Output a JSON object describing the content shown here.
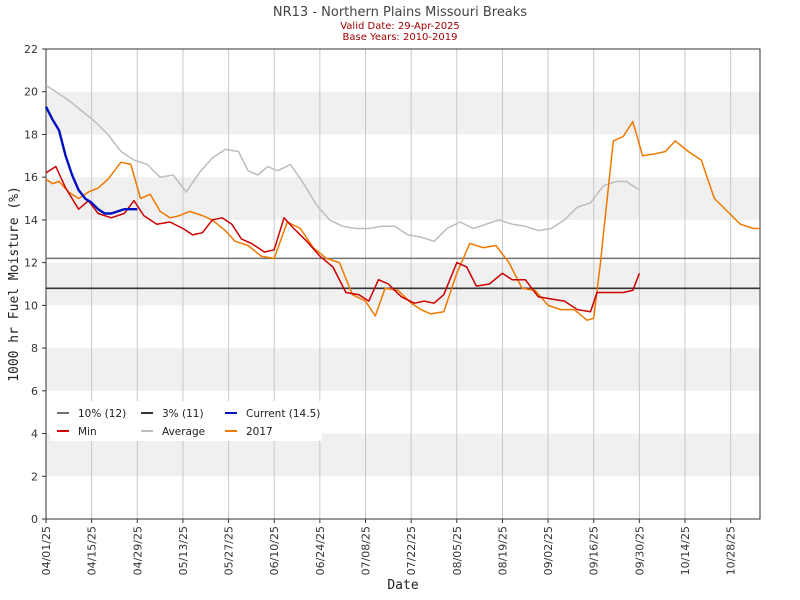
{
  "chart_data": {
    "type": "line",
    "title": "NR13 - Northern Plains Missouri Breaks",
    "subtitle_lines": [
      "Valid Date: 29-Apr-2025",
      "Base Years: 2010-2019"
    ],
    "xlabel": "Date",
    "ylabel": "1000 hr Fuel Moisture (%)",
    "ylim": [
      0,
      22
    ],
    "yticks": [
      0,
      2,
      4,
      6,
      8,
      10,
      12,
      14,
      16,
      18,
      20,
      22
    ],
    "xlim": [
      "04/01/25",
      "11/06/25"
    ],
    "xticks": [
      "04/01/25",
      "04/15/25",
      "04/29/25",
      "05/13/25",
      "05/27/25",
      "06/10/25",
      "06/24/25",
      "07/08/25",
      "07/22/25",
      "08/05/25",
      "08/19/25",
      "09/02/25",
      "09/16/25",
      "09/30/25",
      "10/14/25",
      "10/28/25"
    ],
    "grid": true,
    "legend_position": "lower-left",
    "thresholds": [
      {
        "name": "10% (12)",
        "value": 12.2,
        "color": "#707070"
      },
      {
        "name": "3% (11)",
        "value": 10.8,
        "color": "#333333"
      }
    ],
    "series": [
      {
        "name": "Current (14.5)",
        "color": "#0010c0",
        "x": [
          "04/01/25",
          "04/03/25",
          "04/05/25",
          "04/07/25",
          "04/09/25",
          "04/11/25",
          "04/13/25",
          "04/15/25",
          "04/17/25",
          "04/19/25",
          "04/21/25",
          "04/23/25",
          "04/25/25",
          "04/27/25",
          "04/29/25"
        ],
        "values": [
          19.3,
          18.7,
          18.2,
          17.0,
          16.1,
          15.4,
          15.0,
          14.8,
          14.5,
          14.3,
          14.3,
          14.4,
          14.5,
          14.5,
          14.5
        ]
      },
      {
        "name": "Min",
        "color": "#cc0000",
        "x": [
          "04/01/25",
          "04/04/25",
          "04/07/25",
          "04/11/25",
          "04/14/25",
          "04/17/25",
          "04/21/25",
          "04/25/25",
          "04/28/25",
          "05/01/25",
          "05/05/25",
          "05/09/25",
          "05/13/25",
          "05/16/25",
          "05/19/25",
          "05/22/25",
          "05/25/25",
          "05/28/25",
          "05/31/25",
          "06/03/25",
          "06/07/25",
          "06/10/25",
          "06/13/25",
          "06/16/25",
          "06/20/25",
          "06/24/25",
          "06/28/25",
          "07/02/25",
          "07/06/25",
          "07/09/25",
          "07/12/25",
          "07/15/25",
          "07/19/25",
          "07/23/25",
          "07/26/25",
          "07/29/25",
          "08/01/25",
          "08/05/25",
          "08/08/25",
          "08/11/25",
          "08/15/25",
          "08/19/25",
          "08/22/25",
          "08/26/25",
          "08/30/25",
          "09/03/25",
          "09/07/25",
          "09/11/25",
          "09/15/25",
          "09/17/25",
          "09/21/25",
          "09/25/25",
          "09/28/25",
          "09/30/25"
        ],
        "values": [
          16.2,
          16.5,
          15.5,
          14.5,
          14.9,
          14.3,
          14.1,
          14.3,
          14.9,
          14.2,
          13.8,
          13.9,
          13.6,
          13.3,
          13.4,
          14.0,
          14.1,
          13.8,
          13.1,
          12.9,
          12.5,
          12.6,
          14.1,
          13.6,
          13.0,
          12.3,
          11.8,
          10.6,
          10.5,
          10.2,
          11.2,
          11.0,
          10.4,
          10.1,
          10.2,
          10.1,
          10.5,
          12.0,
          11.8,
          10.9,
          11.0,
          11.5,
          11.2,
          11.2,
          10.4,
          10.3,
          10.2,
          9.8,
          9.7,
          10.6,
          10.6,
          10.6,
          10.7,
          11.5
        ]
      },
      {
        "name": "Average",
        "color": "#bdbdbd",
        "x": [
          "04/01/25",
          "04/04/25",
          "04/08/25",
          "04/12/25",
          "04/16/25",
          "04/20/25",
          "04/24/25",
          "04/28/25",
          "05/02/25",
          "05/06/25",
          "05/10/25",
          "05/14/25",
          "05/18/25",
          "05/22/25",
          "05/26/25",
          "05/30/25",
          "06/02/25",
          "06/05/25",
          "06/08/25",
          "06/11/25",
          "06/15/25",
          "06/19/25",
          "06/23/25",
          "06/27/25",
          "07/01/25",
          "07/05/25",
          "07/09/25",
          "07/13/25",
          "07/17/25",
          "07/21/25",
          "07/25/25",
          "07/29/25",
          "08/02/25",
          "08/06/25",
          "08/10/25",
          "08/14/25",
          "08/18/25",
          "08/22/25",
          "08/26/25",
          "08/30/25",
          "09/03/25",
          "09/07/25",
          "09/11/25",
          "09/15/25",
          "09/19/25",
          "09/23/25",
          "09/26/25",
          "09/30/25"
        ],
        "values": [
          20.3,
          20.0,
          19.6,
          19.1,
          18.6,
          18.0,
          17.2,
          16.8,
          16.6,
          16.0,
          16.1,
          15.3,
          16.2,
          16.9,
          17.3,
          17.2,
          16.3,
          16.1,
          16.5,
          16.3,
          16.6,
          15.7,
          14.7,
          14.0,
          13.7,
          13.6,
          13.6,
          13.7,
          13.7,
          13.3,
          13.2,
          13.0,
          13.6,
          13.9,
          13.6,
          13.8,
          14.0,
          13.8,
          13.7,
          13.5,
          13.6,
          14.0,
          14.6,
          14.8,
          15.6,
          15.8,
          15.8,
          15.4
        ]
      },
      {
        "name": "2017",
        "color": "#f07800",
        "x": [
          "04/01/25",
          "04/03/25",
          "04/05/25",
          "04/08/25",
          "04/11/25",
          "04/14/25",
          "04/17/25",
          "04/20/25",
          "04/24/25",
          "04/27/25",
          "04/30/25",
          "05/03/25",
          "05/06/25",
          "05/09/25",
          "05/12/25",
          "05/15/25",
          "05/19/25",
          "05/22/25",
          "05/26/25",
          "05/29/25",
          "06/02/25",
          "06/06/25",
          "06/10/25",
          "06/14/25",
          "06/18/25",
          "06/22/25",
          "06/26/25",
          "06/30/25",
          "07/04/25",
          "07/08/25",
          "07/11/25",
          "07/14/25",
          "07/18/25",
          "07/22/25",
          "07/25/25",
          "07/28/25",
          "08/01/25",
          "08/05/25",
          "08/09/25",
          "08/13/25",
          "08/17/25",
          "08/21/25",
          "08/25/25",
          "08/29/25",
          "09/02/25",
          "09/06/25",
          "09/10/25",
          "09/14/25",
          "09/16/25",
          "09/18/25",
          "09/22/25",
          "09/25/25",
          "09/28/25",
          "10/01/25",
          "10/05/25",
          "10/08/25",
          "10/11/25",
          "10/15/25",
          "10/19/25",
          "10/23/25",
          "10/27/25",
          "10/31/25",
          "11/04/25",
          "11/06/25"
        ],
        "values": [
          15.9,
          15.7,
          15.8,
          15.3,
          15.0,
          15.3,
          15.5,
          15.9,
          16.7,
          16.6,
          15.0,
          15.2,
          14.4,
          14.1,
          14.2,
          14.4,
          14.2,
          14.0,
          13.5,
          13.0,
          12.8,
          12.3,
          12.2,
          13.9,
          13.6,
          12.7,
          12.2,
          12.0,
          10.5,
          10.2,
          9.5,
          10.8,
          10.7,
          10.1,
          9.8,
          9.6,
          9.7,
          11.5,
          12.9,
          12.7,
          12.8,
          12.0,
          10.8,
          10.7,
          10.0,
          9.8,
          9.8,
          9.3,
          9.4,
          11.9,
          17.7,
          17.9,
          18.6,
          17.0,
          17.1,
          17.2,
          17.7,
          17.2,
          16.8,
          15.0,
          14.4,
          13.8,
          13.6,
          13.6
        ]
      }
    ],
    "legend_order": [
      "10% (12)",
      "3% (11)",
      "Current (14.5)",
      "Min",
      "Average",
      "2017"
    ]
  }
}
